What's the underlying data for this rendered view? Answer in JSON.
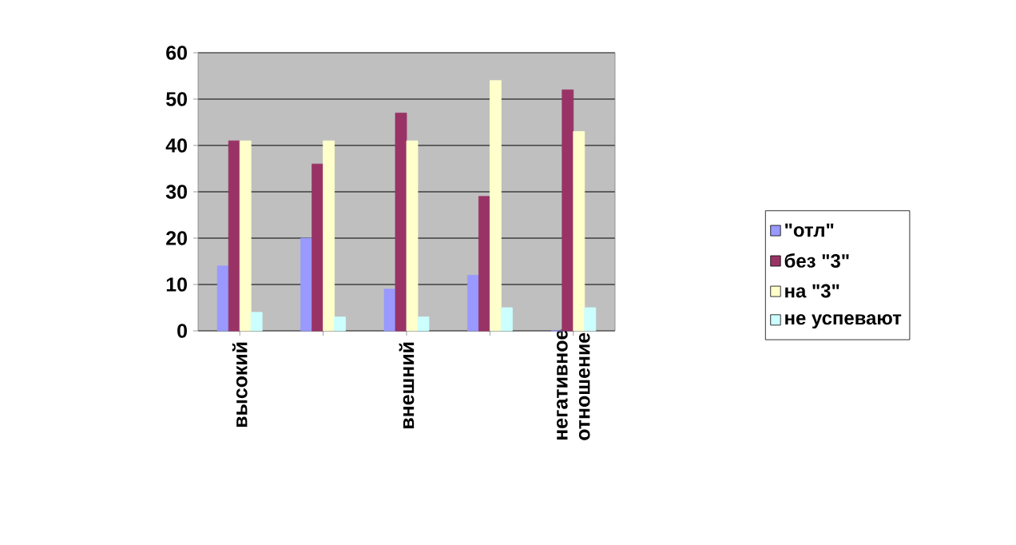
{
  "chart_data": {
    "type": "bar",
    "categories": [
      "высокий",
      null,
      "внешний",
      null,
      "негативное отношение"
    ],
    "series": [
      {
        "name": "\"отл\"",
        "color": "#9999ff",
        "values": [
          14,
          20,
          9,
          12,
          0
        ]
      },
      {
        "name": "без \"3\"",
        "color": "#993366",
        "values": [
          41,
          36,
          47,
          29,
          52
        ]
      },
      {
        "name": "на \"3\"",
        "color": "#ffffcc",
        "values": [
          41,
          41,
          41,
          54,
          43
        ]
      },
      {
        "name": "не успевают",
        "color": "#ccffff",
        "values": [
          4,
          3,
          3,
          5,
          5
        ]
      }
    ],
    "ylim": [
      0,
      60
    ],
    "yticks": [
      0,
      10,
      20,
      30,
      40,
      50,
      60
    ],
    "grid": "y",
    "legend": "right"
  }
}
